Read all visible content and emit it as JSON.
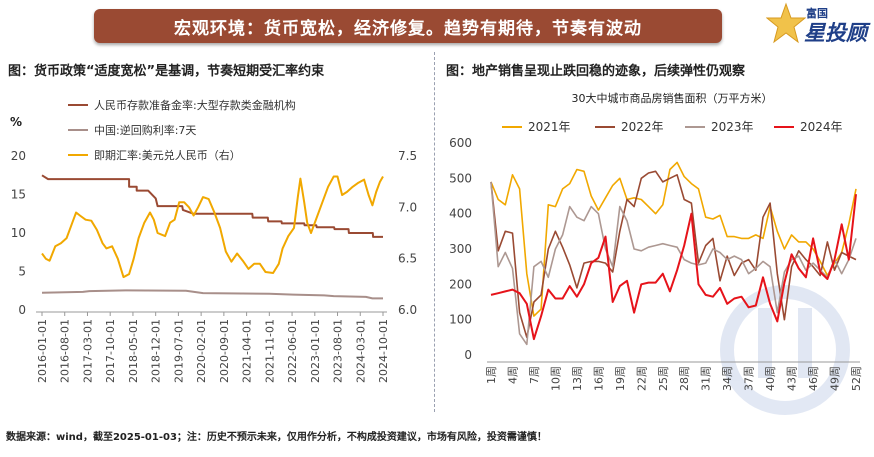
{
  "header": {
    "title": "宏观环境：货币宽松，经济修复。趋势有期待，节奏有波动",
    "logo_small": "富国",
    "logo_main": "星投顾"
  },
  "left_panel": {
    "subtitle": "图：货币政策“适度宽松”是基调，节奏短期受汇率约束"
  },
  "right_panel": {
    "subtitle": "图：地产销售呈现止跌回稳的迹象，后续弹性仍观察"
  },
  "footer": {
    "text": "数据来源：wind，截至2025-01-03；注：历史不预示未来，仅用作分析，不构成投资建议，市场有风险，投资需谨慎！"
  },
  "chart_data": [
    {
      "type": "line",
      "title": "",
      "left_axis_unit": "%",
      "ylim_left": [
        0,
        20
      ],
      "yticks_left": [
        "0",
        "5",
        "10",
        "15",
        "20"
      ],
      "ylim_right": [
        6.0,
        7.5
      ],
      "yticks_right": [
        "6.0",
        "6.5",
        "7.0",
        "7.5"
      ],
      "x_ticks": [
        "2016-01-01",
        "2016-08-01",
        "2017-03-01",
        "2017-10-01",
        "2018-05-01",
        "2018-12-01",
        "2019-07-01",
        "2020-02-01",
        "2020-09-01",
        "2021-04-01",
        "2021-11-01",
        "2022-06-01",
        "2023-01-01",
        "2023-08-01",
        "2024-03-01",
        "2024-10-01"
      ],
      "x_years": [
        2016,
        2025
      ],
      "series": [
        {
          "name": "人民币存款准备金率:大型存款类金融机构",
          "axis": "left",
          "color": "#9a4a33",
          "points": [
            [
              2016.0,
              17.5
            ],
            [
              2016.16,
              17.0
            ],
            [
              2018.3,
              17.0
            ],
            [
              2018.3,
              16.0
            ],
            [
              2018.5,
              16.0
            ],
            [
              2018.5,
              15.5
            ],
            [
              2018.8,
              15.5
            ],
            [
              2019.0,
              14.5
            ],
            [
              2019.05,
              13.5
            ],
            [
              2019.7,
              13.5
            ],
            [
              2019.72,
              13.0
            ],
            [
              2020.0,
              12.5
            ],
            [
              2021.55,
              12.5
            ],
            [
              2021.56,
              12.0
            ],
            [
              2021.96,
              12.0
            ],
            [
              2021.97,
              11.5
            ],
            [
              2022.32,
              11.5
            ],
            [
              2022.33,
              11.25
            ],
            [
              2022.92,
              11.25
            ],
            [
              2022.93,
              11.0
            ],
            [
              2023.24,
              11.0
            ],
            [
              2023.25,
              10.75
            ],
            [
              2023.71,
              10.75
            ],
            [
              2023.72,
              10.5
            ],
            [
              2024.09,
              10.5
            ],
            [
              2024.1,
              10.0
            ],
            [
              2024.73,
              10.0
            ],
            [
              2024.74,
              9.5
            ],
            [
              2025.0,
              9.5
            ]
          ]
        },
        {
          "name": "中国:逆回购利率:7天",
          "axis": "left",
          "color": "#a88f8a",
          "points": [
            [
              2016.0,
              2.25
            ],
            [
              2017.08,
              2.35
            ],
            [
              2017.25,
              2.45
            ],
            [
              2018.2,
              2.55
            ],
            [
              2019.8,
              2.5
            ],
            [
              2020.25,
              2.2
            ],
            [
              2022.0,
              2.1
            ],
            [
              2022.63,
              2.0
            ],
            [
              2023.45,
              1.9
            ],
            [
              2023.7,
              1.8
            ],
            [
              2024.55,
              1.7
            ],
            [
              2024.72,
              1.5
            ],
            [
              2025.0,
              1.5
            ]
          ]
        },
        {
          "name": "即期汇率:美元兑人民币（右）",
          "axis": "right",
          "color": "#f1a800",
          "points": [
            [
              2016.0,
              6.55
            ],
            [
              2016.1,
              6.5
            ],
            [
              2016.2,
              6.48
            ],
            [
              2016.35,
              6.62
            ],
            [
              2016.5,
              6.65
            ],
            [
              2016.65,
              6.7
            ],
            [
              2016.8,
              6.85
            ],
            [
              2016.9,
              6.95
            ],
            [
              2017.0,
              6.92
            ],
            [
              2017.15,
              6.88
            ],
            [
              2017.3,
              6.87
            ],
            [
              2017.45,
              6.78
            ],
            [
              2017.6,
              6.65
            ],
            [
              2017.7,
              6.6
            ],
            [
              2017.85,
              6.62
            ],
            [
              2018.0,
              6.5
            ],
            [
              2018.15,
              6.32
            ],
            [
              2018.3,
              6.35
            ],
            [
              2018.42,
              6.5
            ],
            [
              2018.55,
              6.7
            ],
            [
              2018.7,
              6.85
            ],
            [
              2018.85,
              6.95
            ],
            [
              2018.95,
              6.88
            ],
            [
              2019.05,
              6.75
            ],
            [
              2019.25,
              6.72
            ],
            [
              2019.38,
              6.85
            ],
            [
              2019.5,
              6.88
            ],
            [
              2019.62,
              7.05
            ],
            [
              2019.75,
              7.05
            ],
            [
              2019.88,
              7.0
            ],
            [
              2020.0,
              6.92
            ],
            [
              2020.12,
              7.0
            ],
            [
              2020.25,
              7.1
            ],
            [
              2020.4,
              7.08
            ],
            [
              2020.55,
              6.95
            ],
            [
              2020.7,
              6.8
            ],
            [
              2020.85,
              6.57
            ],
            [
              2021.0,
              6.47
            ],
            [
              2021.15,
              6.55
            ],
            [
              2021.3,
              6.48
            ],
            [
              2021.45,
              6.4
            ],
            [
              2021.6,
              6.45
            ],
            [
              2021.75,
              6.45
            ],
            [
              2021.9,
              6.37
            ],
            [
              2022.1,
              6.36
            ],
            [
              2022.25,
              6.45
            ],
            [
              2022.35,
              6.6
            ],
            [
              2022.5,
              6.72
            ],
            [
              2022.65,
              6.8
            ],
            [
              2022.75,
              7.1
            ],
            [
              2022.82,
              7.28
            ],
            [
              2022.92,
              7.05
            ],
            [
              2023.0,
              6.85
            ],
            [
              2023.1,
              6.75
            ],
            [
              2023.25,
              6.9
            ],
            [
              2023.4,
              7.05
            ],
            [
              2023.55,
              7.2
            ],
            [
              2023.7,
              7.3
            ],
            [
              2023.8,
              7.3
            ],
            [
              2023.92,
              7.12
            ],
            [
              2024.05,
              7.15
            ],
            [
              2024.2,
              7.2
            ],
            [
              2024.35,
              7.24
            ],
            [
              2024.5,
              7.27
            ],
            [
              2024.62,
              7.12
            ],
            [
              2024.72,
              7.02
            ],
            [
              2024.82,
              7.15
            ],
            [
              2024.92,
              7.25
            ],
            [
              2025.0,
              7.3
            ]
          ]
        }
      ]
    },
    {
      "type": "line",
      "title": "30大中城市商品房销售面积（万平方米）",
      "ylim": [
        0,
        600
      ],
      "yticks": [
        "0",
        "100",
        "200",
        "300",
        "400",
        "500",
        "600"
      ],
      "x_ticks": [
        "1周",
        "4周",
        "7周",
        "10周",
        "13周",
        "16周",
        "19周",
        "22周",
        "25周",
        "28周",
        "31周",
        "34周",
        "37周",
        "40周",
        "43周",
        "46周",
        "49周",
        "52周"
      ],
      "series": [
        {
          "name": "2021年",
          "color": "#f1a800",
          "values": [
            490,
            440,
            425,
            510,
            470,
            230,
            110,
            130,
            425,
            420,
            470,
            485,
            525,
            520,
            450,
            410,
            445,
            480,
            500,
            440,
            445,
            440,
            420,
            400,
            425,
            525,
            545,
            505,
            485,
            470,
            390,
            385,
            395,
            335,
            335,
            330,
            330,
            340,
            330,
            420,
            350,
            300,
            340,
            320,
            320,
            300,
            265,
            225,
            260,
            290,
            370,
            470
          ]
        },
        {
          "name": "2022年",
          "color": "#9a4a33",
          "values": [
            490,
            295,
            350,
            345,
            120,
            50,
            150,
            170,
            300,
            350,
            305,
            255,
            190,
            260,
            265,
            265,
            260,
            235,
            350,
            440,
            420,
            500,
            515,
            520,
            490,
            500,
            510,
            440,
            430,
            260,
            310,
            330,
            210,
            280,
            225,
            260,
            270,
            240,
            390,
            430,
            230,
            100,
            250,
            295,
            270,
            250,
            225,
            320,
            240,
            290,
            280,
            270
          ]
        },
        {
          "name": "2023年",
          "color": "#ad9892",
          "values": [
            490,
            250,
            290,
            245,
            60,
            30,
            250,
            265,
            220,
            300,
            340,
            420,
            390,
            380,
            420,
            400,
            300,
            250,
            420,
            380,
            300,
            295,
            305,
            310,
            315,
            310,
            305,
            270,
            260,
            255,
            260,
            300,
            290,
            270,
            280,
            270,
            230,
            245,
            265,
            250,
            120,
            235,
            270,
            280,
            240,
            260,
            240,
            220,
            270,
            230,
            270,
            330
          ]
        },
        {
          "name": "2024年",
          "color": "#e6131a",
          "values": [
            170,
            175,
            180,
            185,
            175,
            145,
            45,
            110,
            185,
            160,
            160,
            195,
            165,
            200,
            260,
            275,
            335,
            150,
            195,
            210,
            120,
            200,
            205,
            205,
            230,
            180,
            240,
            310,
            400,
            200,
            170,
            165,
            190,
            145,
            160,
            165,
            135,
            140,
            220,
            145,
            95,
            205,
            285,
            245,
            220,
            330,
            235,
            215,
            270,
            370,
            270,
            455
          ]
        }
      ]
    }
  ]
}
